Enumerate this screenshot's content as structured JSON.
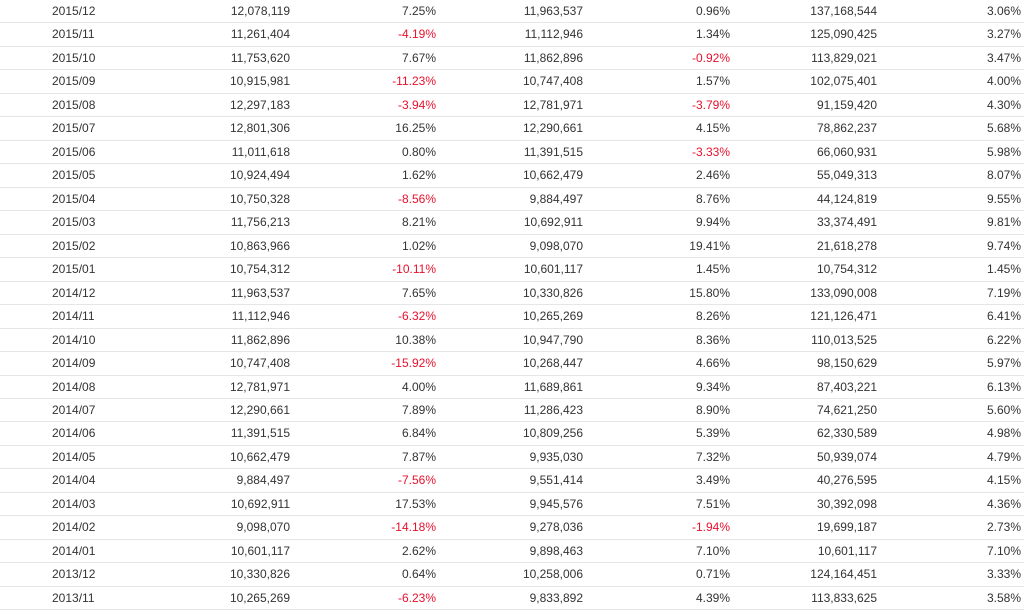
{
  "colors": {
    "text": "#333333",
    "negative": "#e8112d",
    "divider": "#e6e6e6"
  },
  "rows": [
    [
      "2015/12",
      "12,078,119",
      "7.25%",
      "11,963,537",
      "0.96%",
      "137,168,544",
      "3.06%"
    ],
    [
      "2015/11",
      "11,261,404",
      "-4.19%",
      "11,112,946",
      "1.34%",
      "125,090,425",
      "3.27%"
    ],
    [
      "2015/10",
      "11,753,620",
      "7.67%",
      "11,862,896",
      "-0.92%",
      "113,829,021",
      "3.47%"
    ],
    [
      "2015/09",
      "10,915,981",
      "-11.23%",
      "10,747,408",
      "1.57%",
      "102,075,401",
      "4.00%"
    ],
    [
      "2015/08",
      "12,297,183",
      "-3.94%",
      "12,781,971",
      "-3.79%",
      "91,159,420",
      "4.30%"
    ],
    [
      "2015/07",
      "12,801,306",
      "16.25%",
      "12,290,661",
      "4.15%",
      "78,862,237",
      "5.68%"
    ],
    [
      "2015/06",
      "11,011,618",
      "0.80%",
      "11,391,515",
      "-3.33%",
      "66,060,931",
      "5.98%"
    ],
    [
      "2015/05",
      "10,924,494",
      "1.62%",
      "10,662,479",
      "2.46%",
      "55,049,313",
      "8.07%"
    ],
    [
      "2015/04",
      "10,750,328",
      "-8.56%",
      "9,884,497",
      "8.76%",
      "44,124,819",
      "9.55%"
    ],
    [
      "2015/03",
      "11,756,213",
      "8.21%",
      "10,692,911",
      "9.94%",
      "33,374,491",
      "9.81%"
    ],
    [
      "2015/02",
      "10,863,966",
      "1.02%",
      "9,098,070",
      "19.41%",
      "21,618,278",
      "9.74%"
    ],
    [
      "2015/01",
      "10,754,312",
      "-10.11%",
      "10,601,117",
      "1.45%",
      "10,754,312",
      "1.45%"
    ],
    [
      "2014/12",
      "11,963,537",
      "7.65%",
      "10,330,826",
      "15.80%",
      "133,090,008",
      "7.19%"
    ],
    [
      "2014/11",
      "11,112,946",
      "-6.32%",
      "10,265,269",
      "8.26%",
      "121,126,471",
      "6.41%"
    ],
    [
      "2014/10",
      "11,862,896",
      "10.38%",
      "10,947,790",
      "8.36%",
      "110,013,525",
      "6.22%"
    ],
    [
      "2014/09",
      "10,747,408",
      "-15.92%",
      "10,268,447",
      "4.66%",
      "98,150,629",
      "5.97%"
    ],
    [
      "2014/08",
      "12,781,971",
      "4.00%",
      "11,689,861",
      "9.34%",
      "87,403,221",
      "6.13%"
    ],
    [
      "2014/07",
      "12,290,661",
      "7.89%",
      "11,286,423",
      "8.90%",
      "74,621,250",
      "5.60%"
    ],
    [
      "2014/06",
      "11,391,515",
      "6.84%",
      "10,809,256",
      "5.39%",
      "62,330,589",
      "4.98%"
    ],
    [
      "2014/05",
      "10,662,479",
      "7.87%",
      "9,935,030",
      "7.32%",
      "50,939,074",
      "4.79%"
    ],
    [
      "2014/04",
      "9,884,497",
      "-7.56%",
      "9,551,414",
      "3.49%",
      "40,276,595",
      "4.15%"
    ],
    [
      "2014/03",
      "10,692,911",
      "17.53%",
      "9,945,576",
      "7.51%",
      "30,392,098",
      "4.36%"
    ],
    [
      "2014/02",
      "9,098,070",
      "-14.18%",
      "9,278,036",
      "-1.94%",
      "19,699,187",
      "2.73%"
    ],
    [
      "2014/01",
      "10,601,117",
      "2.62%",
      "9,898,463",
      "7.10%",
      "10,601,117",
      "7.10%"
    ],
    [
      "2013/12",
      "10,330,826",
      "0.64%",
      "10,258,006",
      "0.71%",
      "124,164,451",
      "3.33%"
    ],
    [
      "2013/11",
      "10,265,269",
      "-6.23%",
      "9,833,892",
      "4.39%",
      "113,833,625",
      "3.58%"
    ]
  ]
}
